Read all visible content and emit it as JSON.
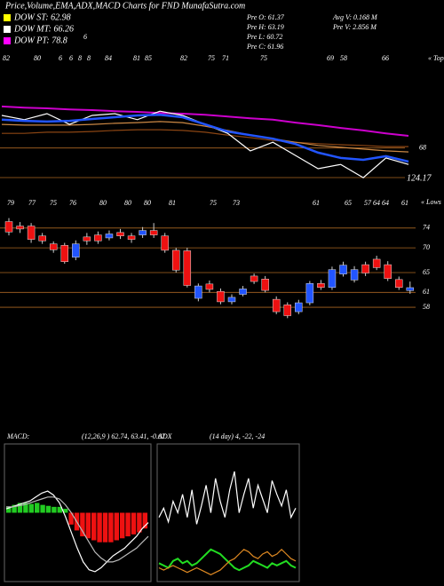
{
  "chart_data": [
    {
      "type": "line",
      "title": "Price,Volume,EMA,ADX,MACD Charts for FND MunafaSutra.com",
      "legend": [
        {
          "name": "DOW ST: 62.98",
          "color": "#ffff00"
        },
        {
          "name": "DOW MT: 66.26",
          "color": "#ffffff"
        },
        {
          "name": "DOW PT: 78.8",
          "color": "#ff00ff"
        }
      ],
      "info": [
        "Pre  O: 61.37",
        "Pre  H: 63.19",
        "Pre  L: 60.72",
        "Pre  C: 61.96",
        "Avg  V: 0.168  M",
        "Pre  V: 2.856  M"
      ],
      "note": "6",
      "top_labels": [
        "82",
        "80",
        "6",
        "6",
        "8",
        "8",
        "84",
        "81",
        "85",
        "82",
        "75",
        "71",
        "75",
        "69",
        "58",
        "66"
      ],
      "corner_label": "« Tops",
      "annotation": "124.17",
      "ylim": [
        56,
        92
      ],
      "yticks": [
        68
      ],
      "series": [
        {
          "color": "#cc00cc",
          "values": [
            79.6,
            79.3,
            79.1,
            78.8,
            78.6,
            78.3,
            78.1,
            77.8,
            77.6,
            77.3,
            76.8,
            76.3,
            75.9,
            75.1,
            74.4,
            73.6,
            72.9,
            72.1,
            71.4
          ]
        },
        {
          "color": "#8b4513",
          "values": [
            72.1,
            72.1,
            72.4,
            72.4,
            72.6,
            72.9,
            73.1,
            73.1,
            72.9,
            72.4,
            71.6,
            70.9,
            70.1,
            69.6,
            69.2,
            68.9,
            68.7,
            68.4,
            68.4
          ]
        },
        {
          "color": "#cc8844",
          "values": [
            74.6,
            74.4,
            74.4,
            74.4,
            74.6,
            74.9,
            75.1,
            75.4,
            75.1,
            74.1,
            72.9,
            71.6,
            70.6,
            69.6,
            68.7,
            68.2,
            67.7,
            67.2,
            66.9
          ]
        },
        {
          "color": "#ffffff",
          "values": [
            77.1,
            75.9,
            77.6,
            74.6,
            77.1,
            77.6,
            75.9,
            78.3,
            77.1,
            74.6,
            72.1,
            67.2,
            69.6,
            65.9,
            62.2,
            63.4,
            59.7,
            65.2,
            63.4
          ]
        },
        {
          "color": "#2255ff",
          "values": [
            75.9,
            75.6,
            75.4,
            75.6,
            76.1,
            76.6,
            77.1,
            77.3,
            76.6,
            74.6,
            72.6,
            71.6,
            70.6,
            69.1,
            66.7,
            65.2,
            64.7,
            65.7,
            64.2
          ]
        }
      ]
    },
    {
      "type": "candlestick",
      "top_labels": [
        "79",
        "77",
        "75",
        "76",
        "80",
        "80",
        "80",
        "81",
        "75",
        "73",
        "61",
        "65",
        "57",
        "64",
        "64",
        "61"
      ],
      "corner_label": "« Lows",
      "ylim": [
        55.5,
        79.7
      ],
      "yticks": [
        74,
        70,
        65,
        61,
        58
      ],
      "up_color": "#2255ff",
      "down_color": "#ee1111",
      "open": [
        75.3,
        74.4,
        74.4,
        72.4,
        70.8,
        70.5,
        68.1,
        72.2,
        72.6,
        72.0,
        73.1,
        72.4,
        72.6,
        73.5,
        72.4,
        69.5,
        69.4,
        59.8,
        62.7,
        61.2,
        59.1,
        60.6,
        64.3,
        63.7,
        59.6,
        58.5,
        57.1,
        58.9,
        62.8,
        62.0,
        64.7,
        63.5,
        66.6,
        67.7,
        66.6,
        63.6,
        61.37
      ],
      "high": [
        76.0,
        75.2,
        75.0,
        73.0,
        71.3,
        71.0,
        71.5,
        73.0,
        73.3,
        73.5,
        73.8,
        73.0,
        74.2,
        75.0,
        73.0,
        70.0,
        70.0,
        62.8,
        63.4,
        61.8,
        60.6,
        62.3,
        64.8,
        64.3,
        60.2,
        59.0,
        59.5,
        63.3,
        63.5,
        66.2,
        67.2,
        66.3,
        67.2,
        68.4,
        67.3,
        64.2,
        63.19
      ],
      "low": [
        72.5,
        73.0,
        71.0,
        70.8,
        69.0,
        66.8,
        67.5,
        70.6,
        70.8,
        71.5,
        71.8,
        71.0,
        72.0,
        72.0,
        69.0,
        65.0,
        62.0,
        59.2,
        61.0,
        58.6,
        58.6,
        60.2,
        62.7,
        61.0,
        56.6,
        55.8,
        56.6,
        58.4,
        61.5,
        61.5,
        64.2,
        63.0,
        64.3,
        65.5,
        63.3,
        61.5,
        60.72
      ],
      "close": [
        73.2,
        73.8,
        71.7,
        71.4,
        69.6,
        67.2,
        70.8,
        71.4,
        71.4,
        72.8,
        72.4,
        71.7,
        73.5,
        72.6,
        69.5,
        65.5,
        62.4,
        62.3,
        61.6,
        59.1,
        60.0,
        61.7,
        63.2,
        61.4,
        57.1,
        56.3,
        58.9,
        62.8,
        62.0,
        65.6,
        66.5,
        65.6,
        64.9,
        66.0,
        63.8,
        62.0,
        61.96
      ]
    },
    {
      "type": "macd",
      "title": "MACD:",
      "subtitle": "(12,26,9 ) 62.74,  63.41,  -0.67",
      "ylim": [
        -3.5,
        3.5
      ],
      "histogram": [
        0.3,
        0.4,
        0.5,
        0.5,
        0.45,
        0.5,
        0.4,
        0.35,
        0.3,
        0.3,
        0.2,
        -0.6,
        -0.9,
        -1.2,
        -1.3,
        -1.4,
        -1.5,
        -1.5,
        -1.5,
        -1.4,
        -1.3,
        -1.2,
        -1.1,
        -1.0,
        -0.8
      ],
      "pos_color": "#22cc22",
      "neg_color": "#ee1111",
      "series": [
        {
          "color": "#ffffff",
          "values": [
            0.2,
            0.3,
            0.4,
            0.5,
            0.6,
            0.8,
            1.0,
            1.1,
            0.9,
            0.5,
            -0.2,
            -1.0,
            -1.8,
            -2.5,
            -2.9,
            -3.0,
            -2.8,
            -2.5,
            -2.2,
            -2.0,
            -1.8,
            -1.5,
            -1.2,
            -0.8,
            -0.5
          ]
        },
        {
          "color": "#bbbbbb",
          "values": [
            0.3,
            0.3,
            0.35,
            0.4,
            0.5,
            0.6,
            0.7,
            0.8,
            0.8,
            0.7,
            0.4,
            0,
            -0.5,
            -1.0,
            -1.5,
            -2.0,
            -2.3,
            -2.5,
            -2.5,
            -2.4,
            -2.2,
            -2.0,
            -1.8,
            -1.5,
            -1.2
          ]
        }
      ]
    },
    {
      "type": "adx",
      "title": "ADX",
      "subtitle": "(14  day) 4,  -22,  -24",
      "ylim": [
        0,
        60
      ],
      "series": [
        {
          "color": "#ffffff",
          "values": [
            28,
            32,
            26,
            35,
            30,
            38,
            28,
            40,
            25,
            33,
            42,
            30,
            45,
            35,
            28,
            40,
            48,
            30,
            38,
            45,
            32,
            42,
            36,
            30,
            44,
            38,
            33,
            40,
            28,
            32
          ]
        },
        {
          "color": "#22dd22",
          "values": [
            8,
            7,
            6,
            9,
            10,
            8,
            9,
            7,
            8,
            10,
            12,
            14,
            13,
            12,
            10,
            8,
            6,
            5,
            6,
            7,
            9,
            8,
            7,
            6,
            8,
            7,
            8,
            9,
            7,
            6
          ]
        },
        {
          "color": "#dd8822",
          "values": [
            6,
            5,
            6,
            7,
            6,
            5,
            4,
            5,
            6,
            5,
            4,
            3,
            4,
            5,
            7,
            9,
            10,
            12,
            14,
            13,
            11,
            10,
            12,
            13,
            11,
            12,
            14,
            12,
            10,
            9
          ]
        }
      ]
    }
  ]
}
